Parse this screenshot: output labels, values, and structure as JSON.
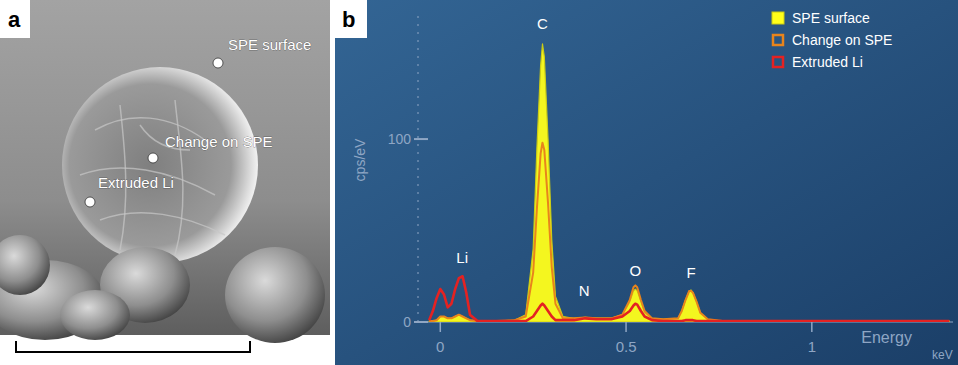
{
  "image_panel": {
    "panel_label": "a",
    "labels": [
      "SPE surface",
      "Change on SPE",
      "Extruded Li"
    ]
  },
  "chart_data": {
    "type": "line",
    "panel_label": "b",
    "xlabel": "Energy",
    "xunit": "keV",
    "ylabel": "cps/eV",
    "xlim": [
      -0.06,
      1.38
    ],
    "ylim": [
      0,
      170
    ],
    "xticks": [
      0,
      0.5,
      1
    ],
    "yticks": [
      0,
      100
    ],
    "legend": "upper right",
    "x": [
      -0.03,
      -0.02,
      -0.01,
      0,
      0.01,
      0.02,
      0.03,
      0.04,
      0.05,
      0.06,
      0.07,
      0.08,
      0.1,
      0.15,
      0.2,
      0.23,
      0.25,
      0.26,
      0.27,
      0.275,
      0.28,
      0.29,
      0.3,
      0.31,
      0.33,
      0.36,
      0.39,
      0.42,
      0.46,
      0.49,
      0.51,
      0.52,
      0.525,
      0.53,
      0.54,
      0.55,
      0.57,
      0.6,
      0.64,
      0.65,
      0.66,
      0.67,
      0.675,
      0.68,
      0.69,
      0.7,
      0.72,
      0.76,
      0.85,
      1.0,
      1.2,
      1.37
    ],
    "series": [
      {
        "name": "SPE surface",
        "type": "area",
        "color": "#ffff1a",
        "values": [
          0.5,
          0.5,
          1,
          3,
          3,
          2,
          2,
          3,
          4,
          3,
          2,
          1,
          0.5,
          0.5,
          1,
          4,
          40,
          95,
          140,
          152,
          145,
          100,
          45,
          14,
          3,
          2,
          2.5,
          2,
          2,
          4,
          11,
          17,
          18,
          17,
          11,
          5,
          2,
          1.5,
          2,
          6,
          12,
          17,
          17.5,
          16,
          11,
          5,
          1.5,
          0.5,
          0.5,
          0.5,
          0.5,
          0.5
        ]
      },
      {
        "name": "Change on SPE",
        "type": "line",
        "color": "#e8841c",
        "values": [
          0.5,
          0.5,
          1,
          3,
          3,
          2,
          2,
          3,
          4,
          3,
          2,
          1,
          0.5,
          0.5,
          1,
          3,
          27,
          62,
          92,
          98,
          94,
          65,
          30,
          10,
          2,
          2,
          2.5,
          2,
          2,
          4,
          12,
          19,
          20,
          19,
          12,
          6,
          2,
          1.5,
          2,
          6,
          12,
          17,
          17,
          16,
          11,
          5,
          1.5,
          0.5,
          0.5,
          0.5,
          0.5,
          0.5
        ]
      },
      {
        "name": "Extruded Li",
        "type": "line",
        "color": "#e42222",
        "values": [
          1,
          6,
          13,
          18,
          15,
          8,
          10,
          18,
          24,
          25,
          16,
          4,
          0.5,
          0.5,
          0.5,
          0.5,
          3,
          6,
          9,
          10,
          9,
          6,
          3,
          1,
          1,
          1,
          2,
          1.5,
          1.5,
          3,
          6,
          9,
          10,
          9.5,
          6,
          3,
          1,
          0.5,
          0.5,
          0.5,
          1,
          1,
          1,
          1,
          0.5,
          0.5,
          0.5,
          0.5,
          0.5,
          0.5,
          0.5,
          0.5
        ]
      }
    ],
    "annotations": [
      {
        "text": "Li",
        "x": 0.059,
        "y": 30
      },
      {
        "text": "C",
        "x": 0.275,
        "y": 158
      },
      {
        "text": "N",
        "x": 0.387,
        "y": 12
      },
      {
        "text": "O",
        "x": 0.525,
        "y": 23
      },
      {
        "text": "F",
        "x": 0.675,
        "y": 22
      }
    ]
  }
}
